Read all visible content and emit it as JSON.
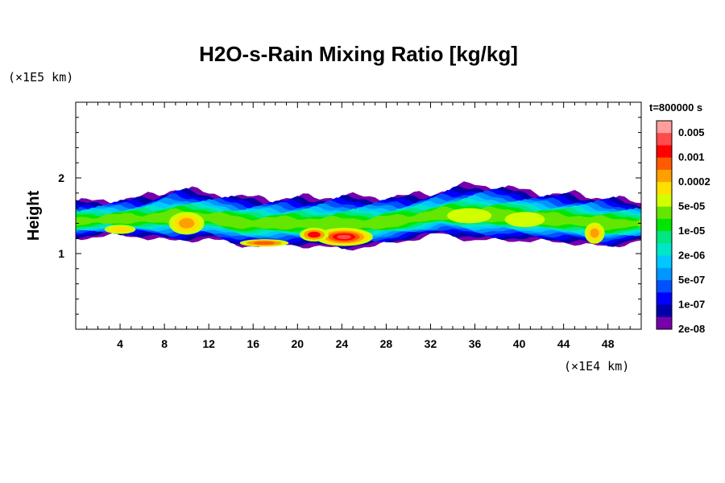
{
  "chart_data": {
    "type": "heatmap",
    "title": "H2O-s-Rain Mixing Ratio [kg/kg]",
    "xlabel": "",
    "ylabel": "Height",
    "x_unit": "(×1E4 km)",
    "y_unit": "(×1E5 km)",
    "time_label": "t=800000 s",
    "x_ticks": [
      4,
      8,
      12,
      16,
      20,
      24,
      28,
      32,
      36,
      40,
      44,
      48
    ],
    "y_ticks": [
      1,
      2
    ],
    "xlim": [
      0,
      51
    ],
    "ylim": [
      0,
      3
    ],
    "colorbar": {
      "labels": [
        "0.005",
        "0.001",
        "0.0002",
        "5e-05",
        "1e-05",
        "2e-06",
        "5e-07",
        "1e-07",
        "2e-08"
      ],
      "colors": [
        "#ff9e9e",
        "#ff4b4b",
        "#ff0000",
        "#ff5a00",
        "#ffa000",
        "#ffe000",
        "#d2ff00",
        "#64e600",
        "#00e600",
        "#00e682",
        "#00e6c8",
        "#00c8ff",
        "#0096ff",
        "#0050ff",
        "#0000ff",
        "#0000aa",
        "#7800aa"
      ]
    },
    "field_profile": {
      "x": [
        0,
        3,
        6,
        9,
        12,
        15,
        18,
        21,
        24,
        27,
        30,
        33,
        36,
        39,
        42,
        45,
        48,
        51
      ],
      "cloud_top": [
        1.68,
        1.7,
        1.74,
        1.86,
        1.8,
        1.74,
        1.73,
        1.74,
        1.76,
        1.74,
        1.76,
        1.83,
        1.92,
        1.86,
        1.8,
        1.78,
        1.74,
        1.66
      ],
      "cloud_base": [
        1.2,
        1.24,
        1.22,
        1.16,
        1.2,
        1.1,
        1.12,
        1.1,
        1.06,
        1.1,
        1.18,
        1.26,
        1.17,
        1.18,
        1.16,
        1.14,
        1.08,
        1.18
      ]
    },
    "grid": false,
    "legend": "right"
  }
}
